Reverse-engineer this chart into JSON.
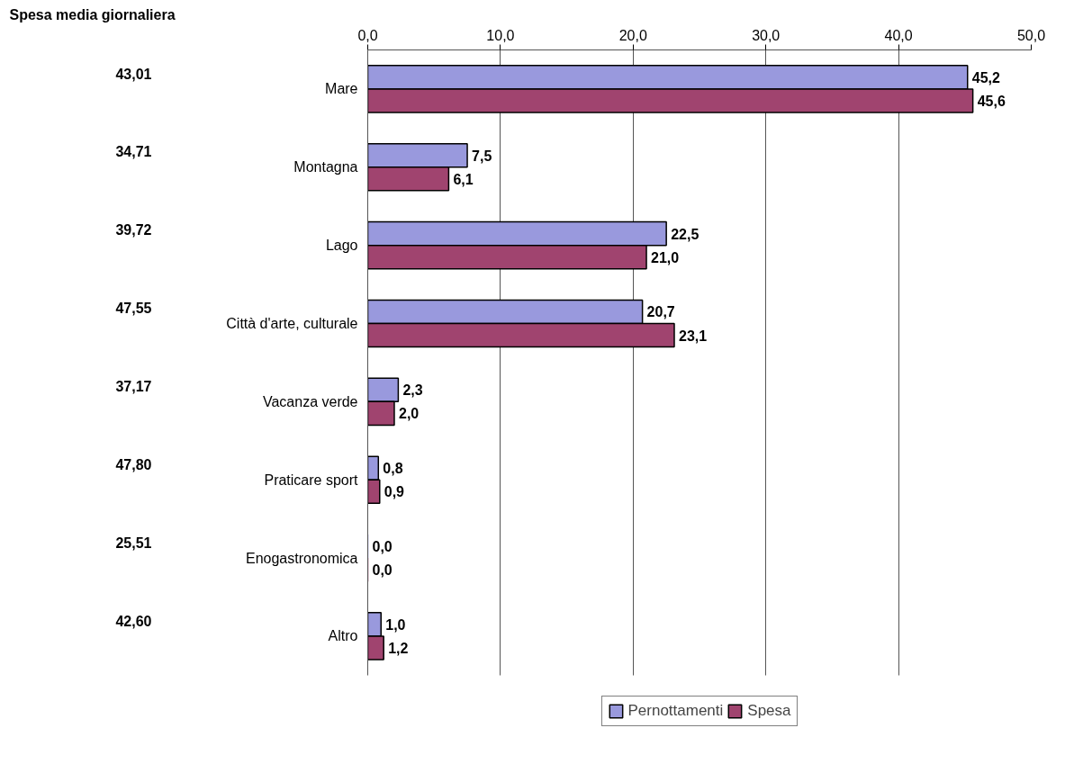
{
  "chart_data": {
    "type": "bar",
    "orientation": "horizontal",
    "categories": [
      "Mare",
      "Montagna",
      "Lago",
      "Città d'arte, culturale",
      "Vacanza verde",
      "Praticare sport",
      "Enogastronomica",
      "Altro"
    ],
    "series": [
      {
        "name": "Pernottamenti",
        "color": "#9999dd",
        "values": [
          45.2,
          7.5,
          22.5,
          20.7,
          2.3,
          0.8,
          0.0,
          1.0
        ],
        "value_labels": [
          "45,2",
          "7,5",
          "22,5",
          "20,7",
          "2,3",
          "0,8",
          "0,0",
          "1,0"
        ]
      },
      {
        "name": "Spesa",
        "color": "#a0446f",
        "values": [
          45.6,
          6.1,
          21.0,
          23.1,
          2.0,
          0.9,
          0.0,
          1.2
        ],
        "value_labels": [
          "45,6",
          "6,1",
          "21,0",
          "23,1",
          "2,0",
          "0,9",
          "0,0",
          "1,2"
        ]
      }
    ],
    "xlim": [
      0,
      50
    ],
    "xticks": [
      {
        "value": 0,
        "label": "0,0"
      },
      {
        "value": 10,
        "label": "10,0"
      },
      {
        "value": 20,
        "label": "20,0"
      },
      {
        "value": 30,
        "label": "30,0"
      },
      {
        "value": 40,
        "label": "40,0"
      },
      {
        "value": 50,
        "label": "50,0"
      }
    ],
    "grid": "x",
    "legend": "bottom",
    "annotations": [
      "Spesa media giornaliera",
      "43,01",
      "34,71",
      "39,72",
      "47,55",
      "37,17",
      "47,80",
      "25,51",
      "42,60"
    ]
  }
}
